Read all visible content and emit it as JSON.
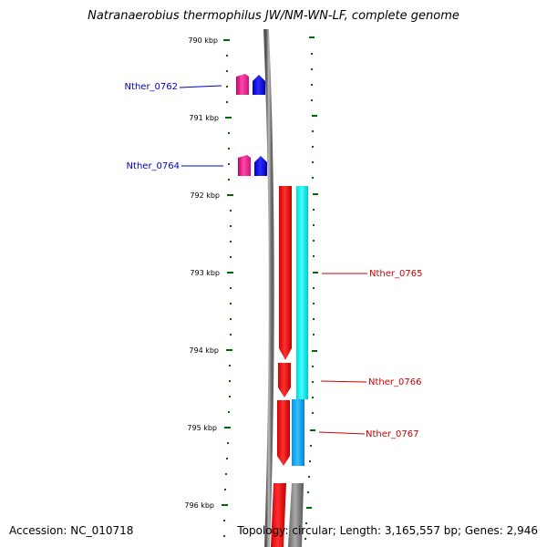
{
  "title": "Natranaerobius thermophilus JW/NM-WN-LF, complete genome",
  "footer": {
    "accession": "Accession: NC_010718",
    "topology": "Topology: circular; Length: 3,165,557 bp; Genes: 2,946"
  },
  "scale_labels": [
    "790 kbp",
    "791 kbp",
    "792 kbp",
    "793 kbp",
    "794 kbp",
    "795 kbp",
    "796 kbp"
  ],
  "genes": [
    {
      "label": "Nther_0762",
      "color": "#0000cc"
    },
    {
      "label": "Nther_0764",
      "color": "#0000cc"
    },
    {
      "label": "Nther_0765",
      "color": "#cc0000"
    },
    {
      "label": "Nther_0766",
      "color": "#cc0000"
    },
    {
      "label": "Nther_0767",
      "color": "#cc0000"
    }
  ],
  "colors": {
    "tick": "#006600",
    "backbone": "#888888",
    "cds": "#ff0000",
    "gene": "#00ffff",
    "gene_alt": "#1ab2ff",
    "trna": "#ff1493",
    "rrna": "#0000ff"
  }
}
